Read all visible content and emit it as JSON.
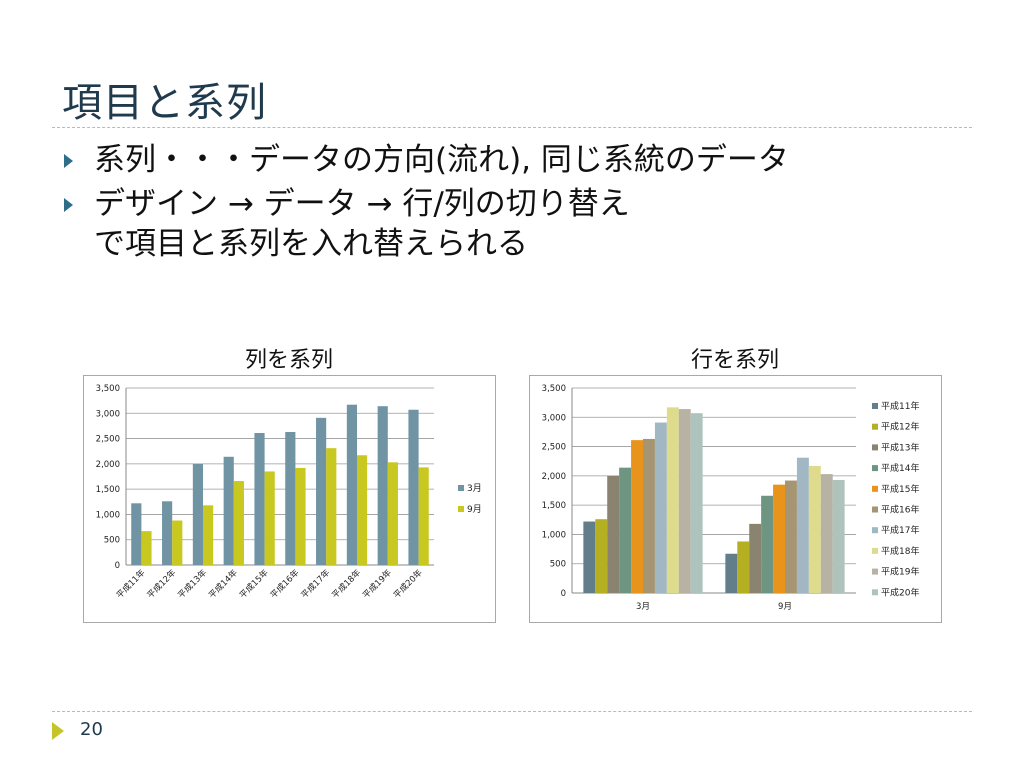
{
  "slide": {
    "title": "項目と系列",
    "page_number": "20",
    "bullets": [
      {
        "lines": [
          "系列・・・データの方向(流れ), 同じ系統のデータ"
        ]
      },
      {
        "lines": [
          "デザイン → データ → 行/列の切り替え",
          "で項目と系列を入れ替えられる"
        ]
      }
    ]
  },
  "chart_data": [
    {
      "type": "bar",
      "title": "列を系列",
      "categories": [
        "平成11年",
        "平成12年",
        "平成13年",
        "平成14年",
        "平成15年",
        "平成16年",
        "平成17年",
        "平成18年",
        "平成19年",
        "平成20年"
      ],
      "series": [
        {
          "name": "3月",
          "color": "#7094a4",
          "values": [
            1220,
            1260,
            2000,
            2140,
            2610,
            2630,
            2910,
            3170,
            3140,
            3070
          ]
        },
        {
          "name": "9月",
          "color": "#c8c820",
          "values": [
            670,
            880,
            1180,
            1660,
            1850,
            1920,
            2310,
            2170,
            2030,
            1930
          ]
        }
      ],
      "ylim": [
        0,
        3500
      ],
      "yticks": [
        "0",
        "500",
        "1,000",
        "1,500",
        "2,000",
        "2,500",
        "3,000",
        "3,500"
      ],
      "grid": true,
      "legend": "right"
    },
    {
      "type": "bar",
      "title": "行を系列",
      "categories": [
        "3月",
        "9月"
      ],
      "series": [
        {
          "name": "平成11年",
          "color": "#617e8a",
          "values": [
            1220,
            670
          ]
        },
        {
          "name": "平成12年",
          "color": "#b5b021",
          "values": [
            1260,
            880
          ]
        },
        {
          "name": "平成13年",
          "color": "#8a8370",
          "values": [
            2000,
            1180
          ]
        },
        {
          "name": "平成14年",
          "color": "#6e9482",
          "values": [
            2140,
            1660
          ]
        },
        {
          "name": "平成15年",
          "color": "#e8931b",
          "values": [
            2610,
            1850
          ]
        },
        {
          "name": "平成16年",
          "color": "#a69572",
          "values": [
            2630,
            1920
          ]
        },
        {
          "name": "平成17年",
          "color": "#a1b7c4",
          "values": [
            2910,
            2310
          ]
        },
        {
          "name": "平成18年",
          "color": "#dedc8c",
          "values": [
            3170,
            2170
          ]
        },
        {
          "name": "平成19年",
          "color": "#b7b2a4",
          "values": [
            3140,
            2030
          ]
        },
        {
          "name": "平成20年",
          "color": "#aec3bb",
          "values": [
            3070,
            1930
          ]
        }
      ],
      "ylim": [
        0,
        3500
      ],
      "yticks": [
        "0",
        "500",
        "1,000",
        "1,500",
        "2,000",
        "2,500",
        "3,000",
        "3,500"
      ],
      "grid": true,
      "legend": "right"
    }
  ]
}
